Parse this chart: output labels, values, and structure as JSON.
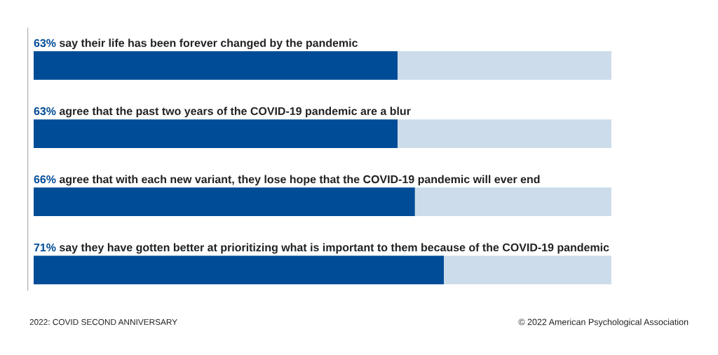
{
  "chart_data": {
    "type": "bar",
    "orientation": "horizontal",
    "stacked": true,
    "categories": [
      "say their life has been forever changed by the pandemic",
      "agree that the past two years of the COVID-19 pandemic are a blur",
      "agree that with each new variant, they lose hope that the COVID-19 pandemic will ever end",
      "say they have gotten better at prioritizing what is important to them because of the COVID-19 pandemic"
    ],
    "series": [
      {
        "color": "#004c97",
        "values": [
          63,
          63,
          66,
          71
        ],
        "value_labels": [
          "63%",
          "63%",
          "66%",
          "71%"
        ]
      },
      {
        "color": "#ccdcea",
        "values": [
          37,
          37,
          34,
          29
        ]
      }
    ],
    "xlim": [
      0,
      100
    ],
    "annotations": [
      "2022: COVID SECOND ANNIVERSARY",
      "© 2022 American Psychological Association"
    ]
  }
}
